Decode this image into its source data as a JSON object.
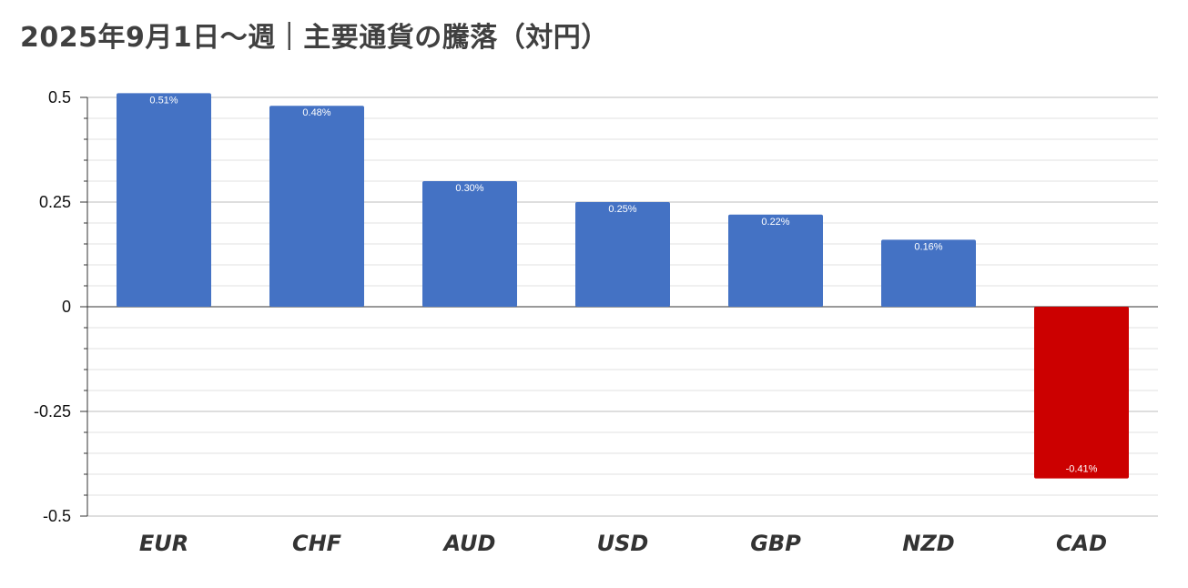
{
  "chart_data": {
    "type": "bar",
    "title": "2025年9月1日〜週｜主要通貨の騰落（対円）",
    "categories": [
      "EUR",
      "CHF",
      "AUD",
      "USD",
      "GBP",
      "NZD",
      "CAD"
    ],
    "values": [
      0.51,
      0.48,
      0.3,
      0.25,
      0.22,
      0.16,
      -0.41
    ],
    "data_labels": [
      "0.51%",
      "0.48%",
      "0.30%",
      "0.25%",
      "0.22%",
      "0.16%",
      "-0.41%"
    ],
    "y_ticks": [
      "0.5",
      "0.25",
      "0",
      "-0.25",
      "-0.5"
    ],
    "ylim": [
      -0.5,
      0.5
    ],
    "grid": true,
    "legend": "none",
    "colors": {
      "positive": "#4472c4",
      "negative": "#cc0000"
    }
  }
}
